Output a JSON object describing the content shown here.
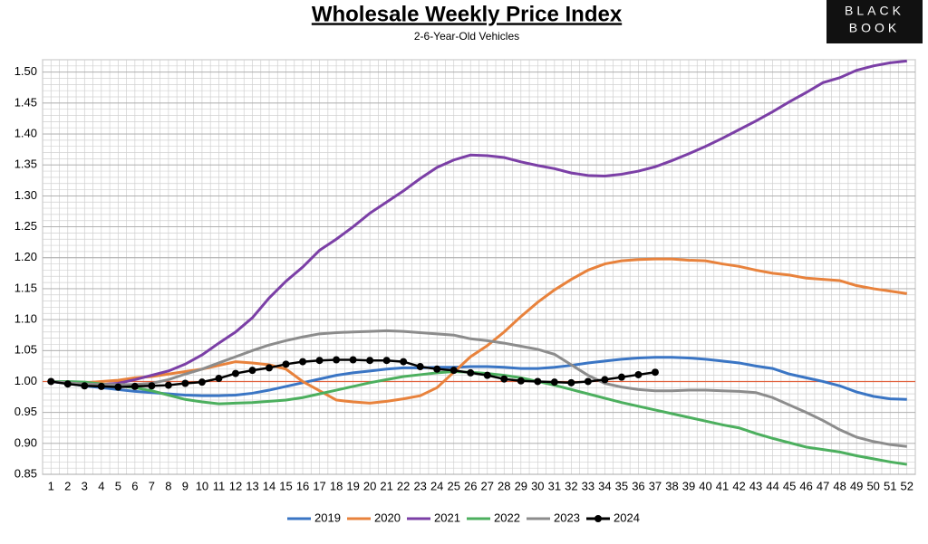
{
  "chart_data": {
    "type": "line",
    "title": "Wholesale Weekly Price Index",
    "subtitle": "2-6-Year-Old Vehicles",
    "logo": [
      "BLACK",
      "BOOK"
    ],
    "categories": [
      1,
      2,
      3,
      4,
      5,
      6,
      7,
      8,
      9,
      10,
      11,
      12,
      13,
      14,
      15,
      16,
      17,
      18,
      19,
      20,
      21,
      22,
      23,
      24,
      25,
      26,
      27,
      28,
      29,
      30,
      31,
      32,
      33,
      34,
      35,
      36,
      37,
      38,
      39,
      40,
      41,
      42,
      43,
      44,
      45,
      46,
      47,
      48,
      49,
      50,
      51,
      52
    ],
    "ylim": [
      0.85,
      1.52
    ],
    "yticks": [
      0.85,
      {
        "value": 0.9,
        "label": "0.90"
      },
      0.95,
      {
        "value": 1,
        "label": "1.00"
      },
      1.05,
      {
        "value": 1.1,
        "label": "1.10"
      },
      1.15,
      {
        "value": 1.2,
        "label": "1.20"
      },
      1.25,
      {
        "value": 1.3,
        "label": "1.30"
      },
      1.35,
      {
        "value": 1.4,
        "label": "1.40"
      },
      1.45,
      {
        "value": 1.5,
        "label": "1.50"
      }
    ],
    "grid": true,
    "reference_line": {
      "value": 1,
      "color": "#e0603c"
    },
    "legend": "bottom",
    "series": [
      {
        "name": "2019",
        "color": "#3a75c4",
        "values": [
          1.0,
          0.997,
          0.993,
          0.99,
          0.987,
          0.984,
          0.982,
          0.98,
          0.978,
          0.977,
          0.977,
          0.978,
          0.981,
          0.986,
          0.992,
          0.998,
          1.004,
          1.01,
          1.014,
          1.017,
          1.02,
          1.022,
          1.022,
          1.023,
          1.023,
          1.024,
          1.024,
          1.023,
          1.021,
          1.021,
          1.023,
          1.026,
          1.03,
          1.033,
          1.036,
          1.038,
          1.039,
          1.039,
          1.038,
          1.036,
          1.033,
          1.03,
          1.025,
          1.021,
          1.012,
          1.006,
          1.0,
          0.993,
          0.983,
          0.976,
          0.972,
          0.971
        ]
      },
      {
        "name": "2020",
        "color": "#e8823c",
        "values": [
          1.0,
          0.998,
          0.998,
          1.0,
          1.002,
          1.006,
          1.008,
          1.012,
          1.016,
          1.02,
          1.026,
          1.032,
          1.03,
          1.027,
          1.02,
          1.0,
          0.985,
          0.97,
          0.967,
          0.965,
          0.968,
          0.972,
          0.977,
          0.99,
          1.015,
          1.04,
          1.058,
          1.08,
          1.105,
          1.128,
          1.148,
          1.165,
          1.18,
          1.19,
          1.195,
          1.197,
          1.198,
          1.198,
          1.196,
          1.195,
          1.19,
          1.186,
          1.18,
          1.175,
          1.172,
          1.167,
          1.165,
          1.163,
          1.155,
          1.15,
          1.146,
          1.142
        ]
      },
      {
        "name": "2021",
        "color": "#7b3fa6",
        "values": [
          1.0,
          0.997,
          0.995,
          0.995,
          0.997,
          1.003,
          1.01,
          1.017,
          1.028,
          1.043,
          1.062,
          1.08,
          1.103,
          1.135,
          1.162,
          1.185,
          1.212,
          1.23,
          1.25,
          1.272,
          1.29,
          1.308,
          1.328,
          1.346,
          1.358,
          1.366,
          1.365,
          1.362,
          1.355,
          1.349,
          1.344,
          1.337,
          1.333,
          1.332,
          1.335,
          1.34,
          1.347,
          1.357,
          1.368,
          1.38,
          1.393,
          1.407,
          1.421,
          1.436,
          1.452,
          1.467,
          1.483,
          1.491,
          1.503,
          1.51,
          1.515,
          1.518
        ]
      },
      {
        "name": "2022",
        "color": "#4caf5e",
        "values": [
          1.0,
          1.0,
          0.999,
          0.996,
          0.993,
          0.99,
          0.985,
          0.978,
          0.971,
          0.967,
          0.964,
          0.965,
          0.966,
          0.968,
          0.97,
          0.974,
          0.98,
          0.986,
          0.992,
          0.998,
          1.003,
          1.008,
          1.011,
          1.014,
          1.016,
          1.015,
          1.013,
          1.01,
          1.006,
          1.0,
          0.994,
          0.987,
          0.98,
          0.973,
          0.966,
          0.96,
          0.954,
          0.948,
          0.942,
          0.936,
          0.93,
          0.925,
          0.916,
          0.908,
          0.901,
          0.894,
          0.89,
          0.886,
          0.88,
          0.875,
          0.87,
          0.866
        ]
      },
      {
        "name": "2023",
        "color": "#8c8c8c",
        "values": [
          1.0,
          0.998,
          0.996,
          0.995,
          0.995,
          0.995,
          0.997,
          1.003,
          1.012,
          1.02,
          1.03,
          1.04,
          1.05,
          1.059,
          1.066,
          1.072,
          1.077,
          1.079,
          1.08,
          1.081,
          1.082,
          1.081,
          1.079,
          1.077,
          1.075,
          1.069,
          1.066,
          1.062,
          1.057,
          1.052,
          1.044,
          1.027,
          1.01,
          0.997,
          0.991,
          0.987,
          0.985,
          0.985,
          0.986,
          0.986,
          0.985,
          0.984,
          0.982,
          0.974,
          0.962,
          0.95,
          0.937,
          0.922,
          0.91,
          0.903,
          0.898,
          0.895
        ]
      },
      {
        "name": "2024",
        "color": "#000000",
        "markers": true,
        "values": [
          1.0,
          0.996,
          0.993,
          0.992,
          0.991,
          0.992,
          0.993,
          0.994,
          0.997,
          0.999,
          1.005,
          1.013,
          1.018,
          1.022,
          1.028,
          1.032,
          1.034,
          1.035,
          1.035,
          1.034,
          1.034,
          1.032,
          1.024,
          1.02,
          1.018,
          1.014,
          1.01,
          1.004,
          1.001,
          1.0,
          0.999,
          0.998,
          1.0,
          1.003,
          1.007,
          1.011,
          1.015,
          null,
          null,
          null,
          null,
          null,
          null,
          null,
          null,
          null,
          null,
          null,
          null,
          null,
          null,
          null
        ]
      }
    ]
  }
}
